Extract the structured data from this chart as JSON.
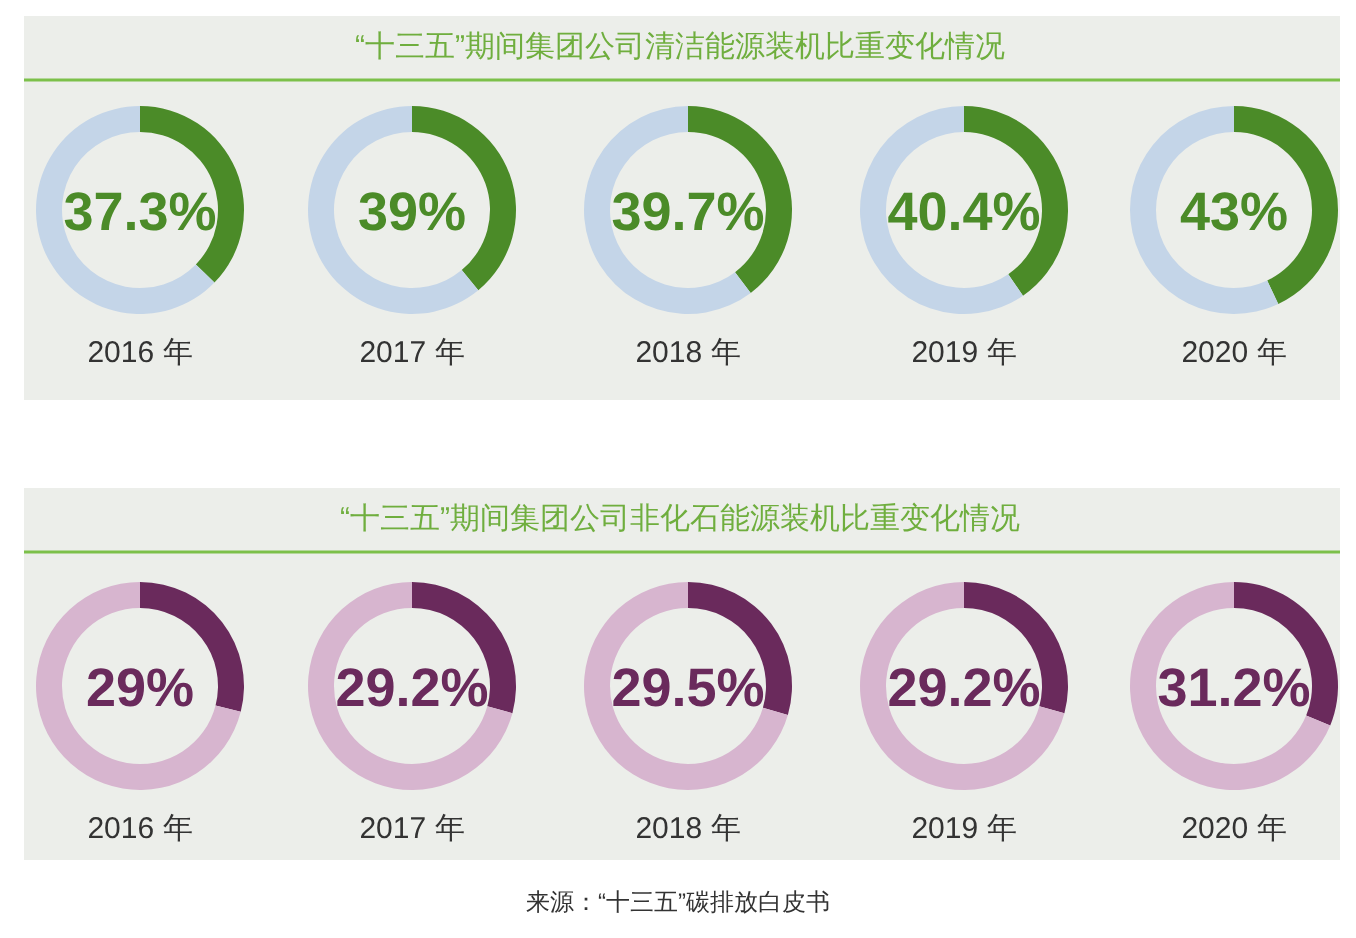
{
  "chart_data": [
    {
      "type": "other",
      "title": "“十三五”期间集团公司清洁能源装机比重变化情况"
    },
    {
      "type": "donut",
      "categories": [
        null,
        null
      ],
      "values": [
        37.3,
        62.7
      ],
      "colors": [
        "#4b8b28",
        "#c4d5e8"
      ],
      "annotations": [
        "37.3%"
      ],
      "xlabel": "2016 年"
    },
    {
      "type": "donut",
      "categories": [
        null,
        null
      ],
      "values": [
        39,
        61
      ],
      "colors": [
        "#4b8b28",
        "#c4d5e8"
      ],
      "annotations": [
        "39%"
      ],
      "xlabel": "2017 年"
    },
    {
      "type": "donut",
      "categories": [
        null,
        null
      ],
      "values": [
        39.7,
        60.3
      ],
      "colors": [
        "#4b8b28",
        "#c4d5e8"
      ],
      "annotations": [
        "39.7%"
      ],
      "xlabel": "2018 年"
    },
    {
      "type": "donut",
      "categories": [
        null,
        null
      ],
      "values": [
        40.4,
        59.6
      ],
      "colors": [
        "#4b8b28",
        "#c4d5e8"
      ],
      "annotations": [
        "40.4%"
      ],
      "xlabel": "2019 年"
    },
    {
      "type": "donut",
      "categories": [
        null,
        null
      ],
      "values": [
        43,
        57
      ],
      "colors": [
        "#4b8b28",
        "#c4d5e8"
      ],
      "annotations": [
        "43%"
      ],
      "xlabel": "2020 年"
    },
    {
      "type": "other",
      "title": "“十三五”期间集团公司非化石能源装机比重变化情况"
    },
    {
      "type": "donut",
      "categories": [
        null,
        null
      ],
      "values": [
        29,
        71
      ],
      "colors": [
        "#6a2a5c",
        "#d7b5cf"
      ],
      "annotations": [
        "29%"
      ],
      "xlabel": "2016 年"
    },
    {
      "type": "donut",
      "categories": [
        null,
        null
      ],
      "values": [
        29.2,
        70.8
      ],
      "colors": [
        "#6a2a5c",
        "#d7b5cf"
      ],
      "annotations": [
        "29.2%"
      ],
      "xlabel": "2017 年"
    },
    {
      "type": "donut",
      "categories": [
        null,
        null
      ],
      "values": [
        29.5,
        70.5
      ],
      "colors": [
        "#6a2a5c",
        "#d7b5cf"
      ],
      "annotations": [
        "29.5%"
      ],
      "xlabel": "2018 年"
    },
    {
      "type": "donut",
      "categories": [
        null,
        null
      ],
      "values": [
        29.2,
        70.8
      ],
      "colors": [
        "#6a2a5c",
        "#d7b5cf"
      ],
      "annotations": [
        "29.2%"
      ],
      "xlabel": "2019 年"
    },
    {
      "type": "donut",
      "categories": [
        null,
        null
      ],
      "values": [
        31.2,
        68.8
      ],
      "colors": [
        "#6a2a5c",
        "#d7b5cf"
      ],
      "annotations": [
        "31.2%"
      ],
      "xlabel": "2020 年"
    },
    {
      "type": "other",
      "annotations": [
        "来源：“十三五”碳排放白皮书"
      ]
    }
  ]
}
